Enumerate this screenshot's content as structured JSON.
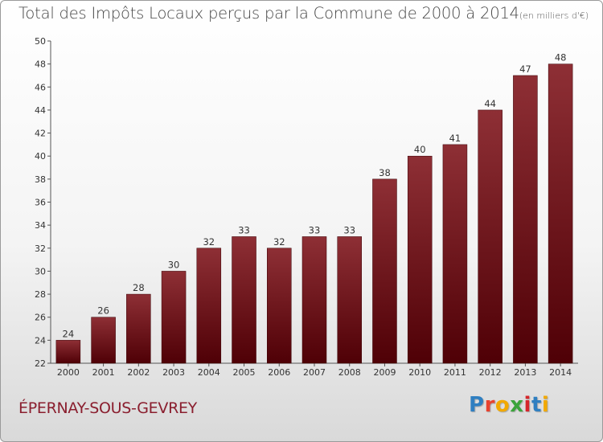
{
  "header": {
    "title": "Total des Impôts Locaux perçus par la Commune de 2000 à 2014",
    "unit_note": "(en milliers d'€)"
  },
  "footer": {
    "commune": "ÉPERNAY-SOUS-GEVREY",
    "logo_letters": [
      "P",
      "r",
      "o",
      "x",
      "i",
      "t",
      "i"
    ],
    "logo_colors": [
      "#2f7fc1",
      "#e8422f",
      "#f2a900",
      "#3aa43a",
      "#d6262b",
      "#2f7fc1",
      "#f2a900"
    ]
  },
  "colors": {
    "bar_top": "#8e2f35",
    "bar_bottom": "#4f0006",
    "commune_text": "#8a1e2e"
  },
  "chart_data": {
    "type": "bar",
    "title": "Total des Impôts Locaux perçus par la Commune de 2000 à 2014",
    "categories": [
      "2000",
      "2001",
      "2002",
      "2003",
      "2004",
      "2005",
      "2006",
      "2007",
      "2008",
      "2009",
      "2010",
      "2011",
      "2012",
      "2013",
      "2014"
    ],
    "values": [
      24,
      26,
      28,
      30,
      32,
      33,
      32,
      33,
      33,
      38,
      40,
      41,
      44,
      47,
      48
    ],
    "data_labels": [
      "24",
      "26",
      "28",
      "30",
      "32",
      "33",
      "32",
      "33",
      "33",
      "38",
      "40",
      "41",
      "44",
      "47",
      "48"
    ],
    "ylim": [
      22,
      50
    ],
    "yticks": [
      22,
      24,
      26,
      28,
      30,
      32,
      34,
      36,
      38,
      40,
      42,
      44,
      46,
      48,
      50
    ],
    "ytick_labels": [
      "22",
      "24",
      "26",
      "28",
      "30",
      "32",
      "34",
      "36",
      "38",
      "40",
      "42",
      "44",
      "46",
      "48",
      "50"
    ],
    "grid": false,
    "legend": "none"
  }
}
